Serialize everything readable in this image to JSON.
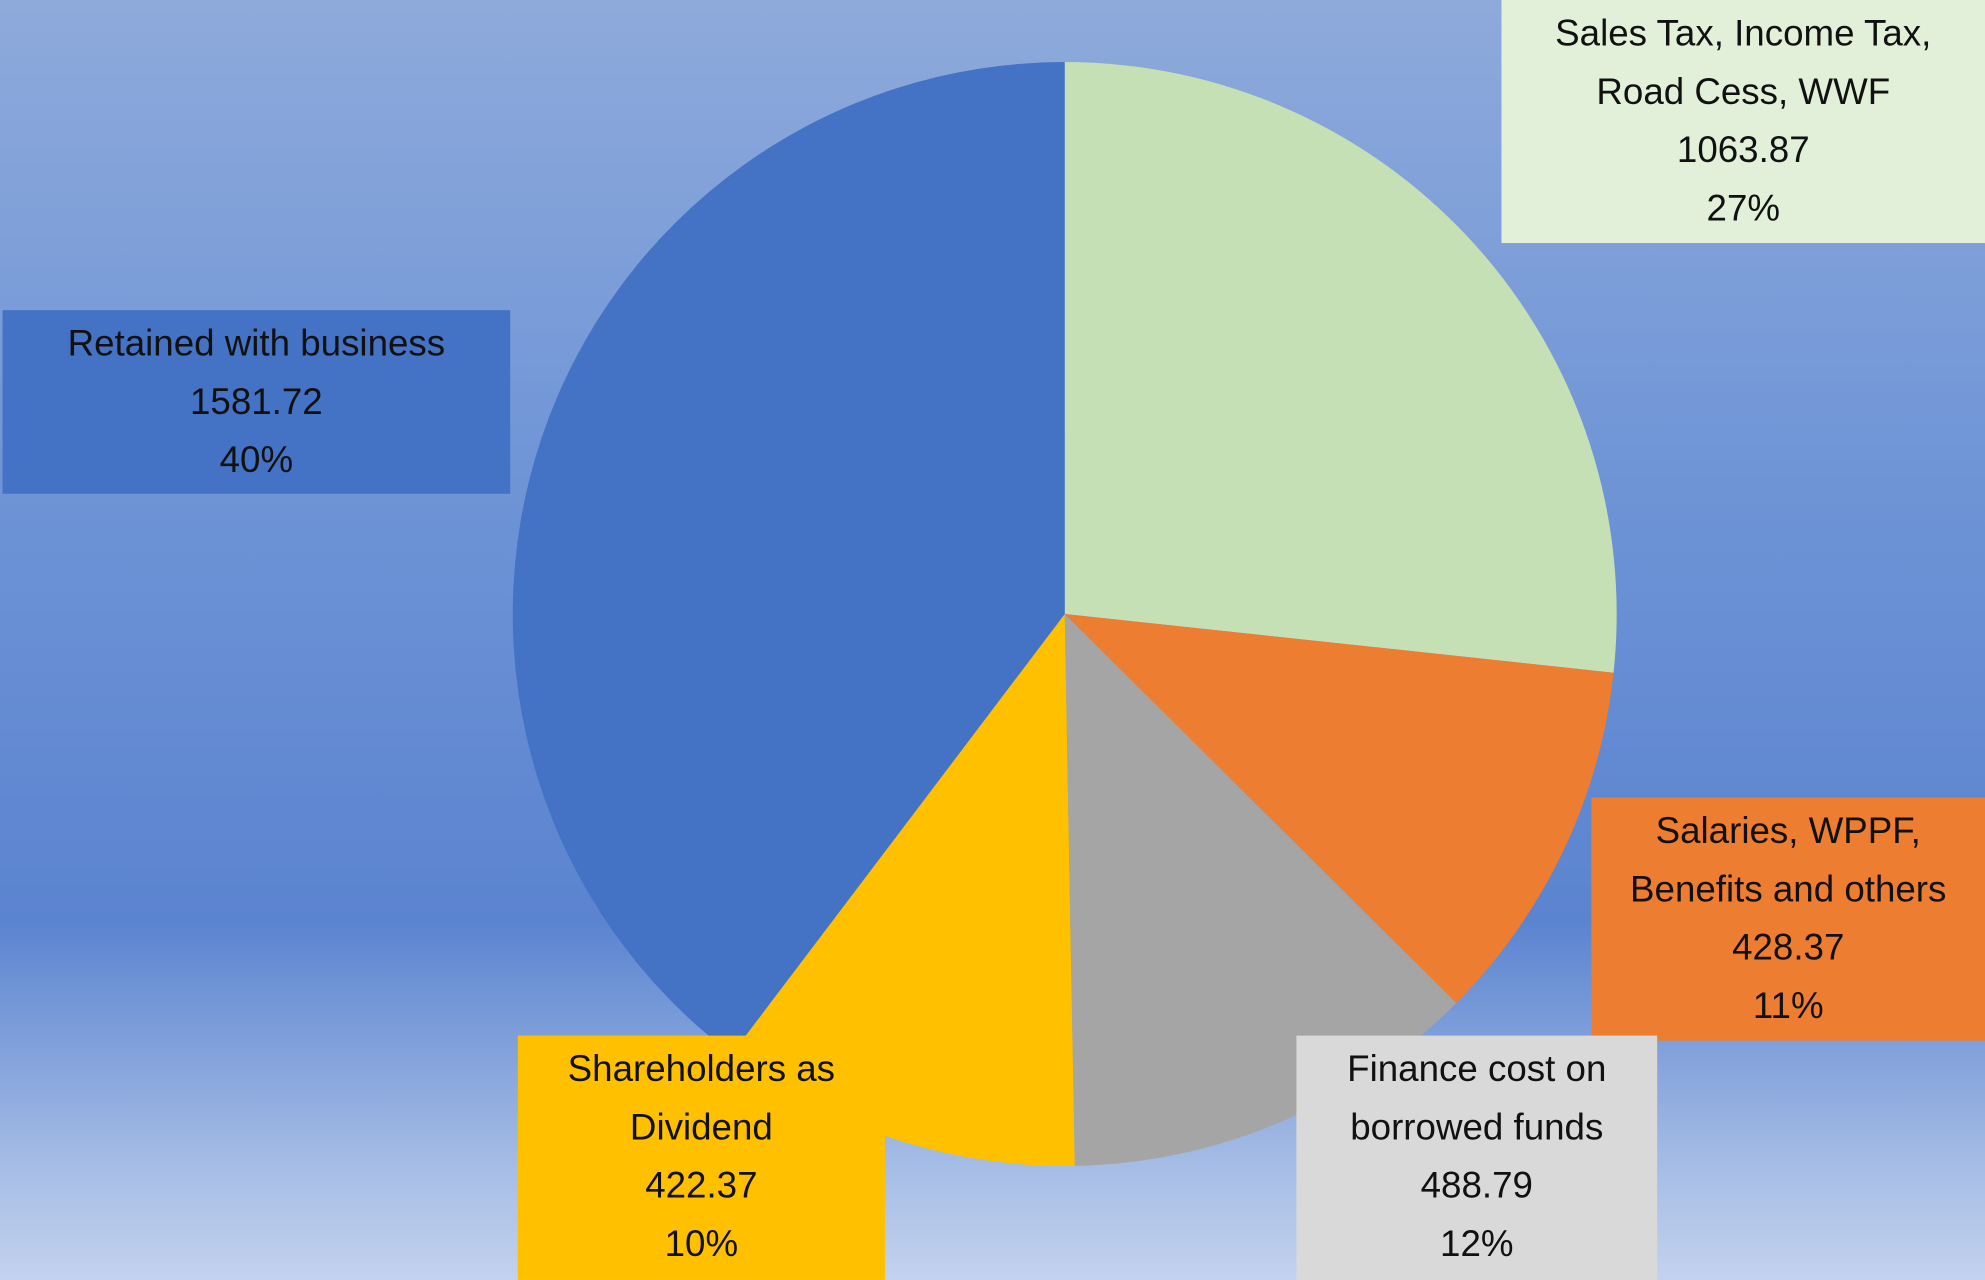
{
  "chart_data": {
    "type": "pie",
    "categories": [
      "Sales Tax, Income Tax, Road Cess, WWF",
      "Salaries, WPPF, Benefits and others",
      "Finance cost on borrowed funds",
      "Shareholders as Dividend",
      "Retained with business"
    ],
    "values": [
      1063.87,
      428.37,
      488.79,
      422.37,
      1581.72
    ],
    "percent_labels": [
      "27%",
      "11%",
      "12%",
      "10%",
      "40%"
    ],
    "colors": [
      "#c5e0b4",
      "#ed7d31",
      "#a5a5a5",
      "#ffc000",
      "#4472c4"
    ],
    "label_colors": [
      "#e2f0d9",
      "#ed7d31",
      "#d9d9d9",
      "#ffc000",
      "#4472c4"
    ]
  }
}
